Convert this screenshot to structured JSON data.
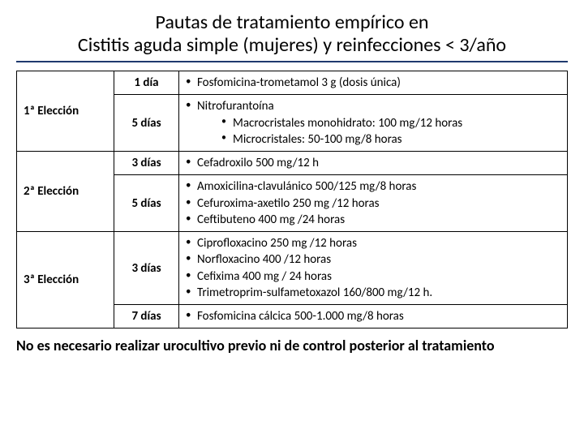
{
  "title_line1": "Pautas de tratamiento empírico en",
  "title_line2": "Cistitis aguda simple (mujeres) y reinfecciones < 3/año",
  "rows": [
    {
      "level": "1ª Elección",
      "durations": [
        {
          "label": "1 día",
          "items": [
            "Fosfomicina-trometamol 3 g (dosis única)"
          ]
        },
        {
          "label": "5 días",
          "items": [
            "Nitrofurantoína"
          ],
          "subitems": [
            "Macrocristales monohidrato: 100 mg/12 horas",
            "Microcristales: 50-100 mg/8 horas"
          ]
        }
      ]
    },
    {
      "level": "2ª Elección",
      "durations": [
        {
          "label": "3 días",
          "items": [
            "Cefadroxilo 500 mg/12 h"
          ]
        },
        {
          "label": "5 días",
          "items": [
            "Amoxicilina-clavulánico 500/125 mg/8 horas",
            "Cefuroxima-axetilo 250 mg /12 horas",
            "Ceftibuteno 400 mg /24 horas"
          ]
        }
      ]
    },
    {
      "level": "3ª Elección",
      "durations": [
        {
          "label": "3 días",
          "items": [
            "Ciprofloxacino 250 mg /12 horas",
            "Norfloxacino 400 /12 horas",
            "Cefixima 400 mg / 24 horas",
            "Trimetroprim-sulfametoxazol 160/800 mg/12 h."
          ]
        },
        {
          "label": "7 días",
          "items": [
            "Fosfomicina cálcica 500-1.000 mg/8 horas"
          ]
        }
      ]
    }
  ],
  "footnote": "No es necesario realizar urocultivo previo ni de control posterior al tratamiento",
  "colors": {
    "underline": "#1f3a6e",
    "border": "#000000",
    "text": "#000000"
  }
}
